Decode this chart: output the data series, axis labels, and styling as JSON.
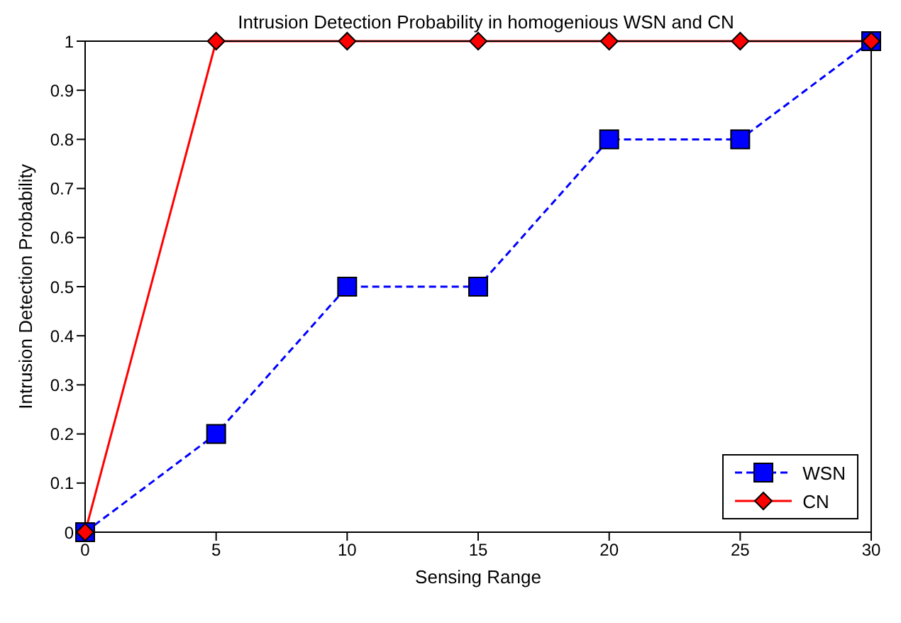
{
  "chart_data": {
    "type": "line",
    "title": "Intrusion Detection Probability in homogenious WSN and CN",
    "xlabel": "Sensing Range",
    "ylabel": "Intrusion Detection Probability",
    "x": [
      0,
      5,
      10,
      15,
      20,
      25,
      30
    ],
    "series": [
      {
        "name": "WSN",
        "color": "#0000ff",
        "values": [
          0,
          0.2,
          0.5,
          0.5,
          0.8,
          0.8,
          1
        ],
        "marker": "square",
        "line_style": "dashed"
      },
      {
        "name": "CN",
        "color": "#ff0000",
        "values": [
          0,
          1,
          1,
          1,
          1,
          1,
          1
        ],
        "marker": "diamond",
        "line_style": "solid"
      }
    ],
    "xlim": [
      0,
      30
    ],
    "xticks": [
      0,
      5,
      10,
      15,
      20,
      25,
      30
    ],
    "ylim": [
      0,
      1
    ],
    "yticks": [
      0,
      0.1,
      0.2,
      0.3,
      0.4,
      0.5,
      0.6,
      0.7,
      0.8,
      0.9,
      1
    ],
    "grid": false,
    "legend": "bottom right"
  }
}
